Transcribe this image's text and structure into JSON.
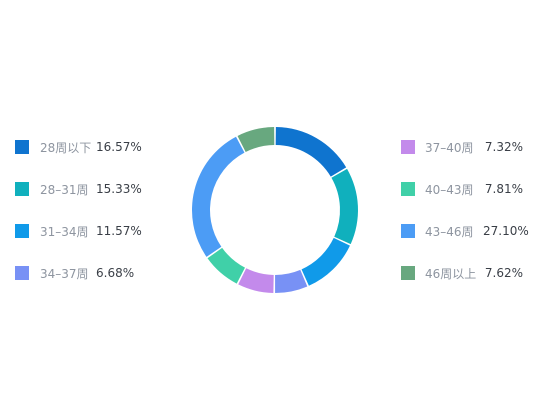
{
  "chart_data": {
    "type": "pie",
    "variant": "donut",
    "title": "",
    "categories": [
      "28周以下",
      "28–31周",
      "31–34周",
      "34–37周",
      "37–40周",
      "40–43周",
      "43–46周",
      "46周以上"
    ],
    "values": [
      16.57,
      15.33,
      11.57,
      6.68,
      7.32,
      7.81,
      27.1,
      7.62
    ],
    "value_labels": [
      "16.57%",
      "15.33%",
      "11.57%",
      "6.68%",
      "7.32%",
      "7.81%",
      "27.10%",
      "7.62%"
    ],
    "colors": [
      "#0f74cf",
      "#10b0bd",
      "#109ae9",
      "#7891f5",
      "#c38aeb",
      "#40d0a8",
      "#4c9cf5",
      "#68a87f"
    ],
    "legend_position": "left and right of the ring, four entries each",
    "grid": false
  }
}
